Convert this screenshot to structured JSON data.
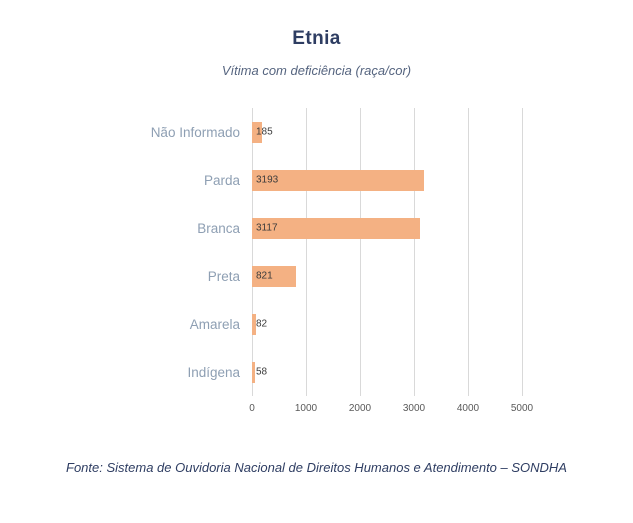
{
  "page": {
    "title": "Etnia",
    "subtitle": "Vítima com deficiência (raça/cor)",
    "source_note": "Fonte: Sistema de Ouvidoria Nacional de Direitos Humanos e Atendimento – SONDHA"
  },
  "colors": {
    "bar": "#f4b183",
    "title_text": "#2e3d62",
    "subtitle_text": "#55647f",
    "category_text": "#8e9fb3",
    "gridline": "#d9d9d9",
    "tick_text": "#595959",
    "value_text": "#3b3b3b"
  },
  "chart_data": {
    "type": "bar",
    "orientation": "horizontal",
    "title": "Etnia",
    "subtitle": "Vítima com deficiência (raça/cor)",
    "categories": [
      "Não Informado",
      "Parda",
      "Branca",
      "Preta",
      "Amarela",
      "Indígena"
    ],
    "values": [
      185,
      3193,
      3117,
      821,
      82,
      58
    ],
    "xlabel": "",
    "ylabel": "",
    "xlim": [
      0,
      5000
    ],
    "xticks": [
      0,
      1000,
      2000,
      3000,
      4000,
      5000
    ],
    "grid": true,
    "legend": false
  }
}
